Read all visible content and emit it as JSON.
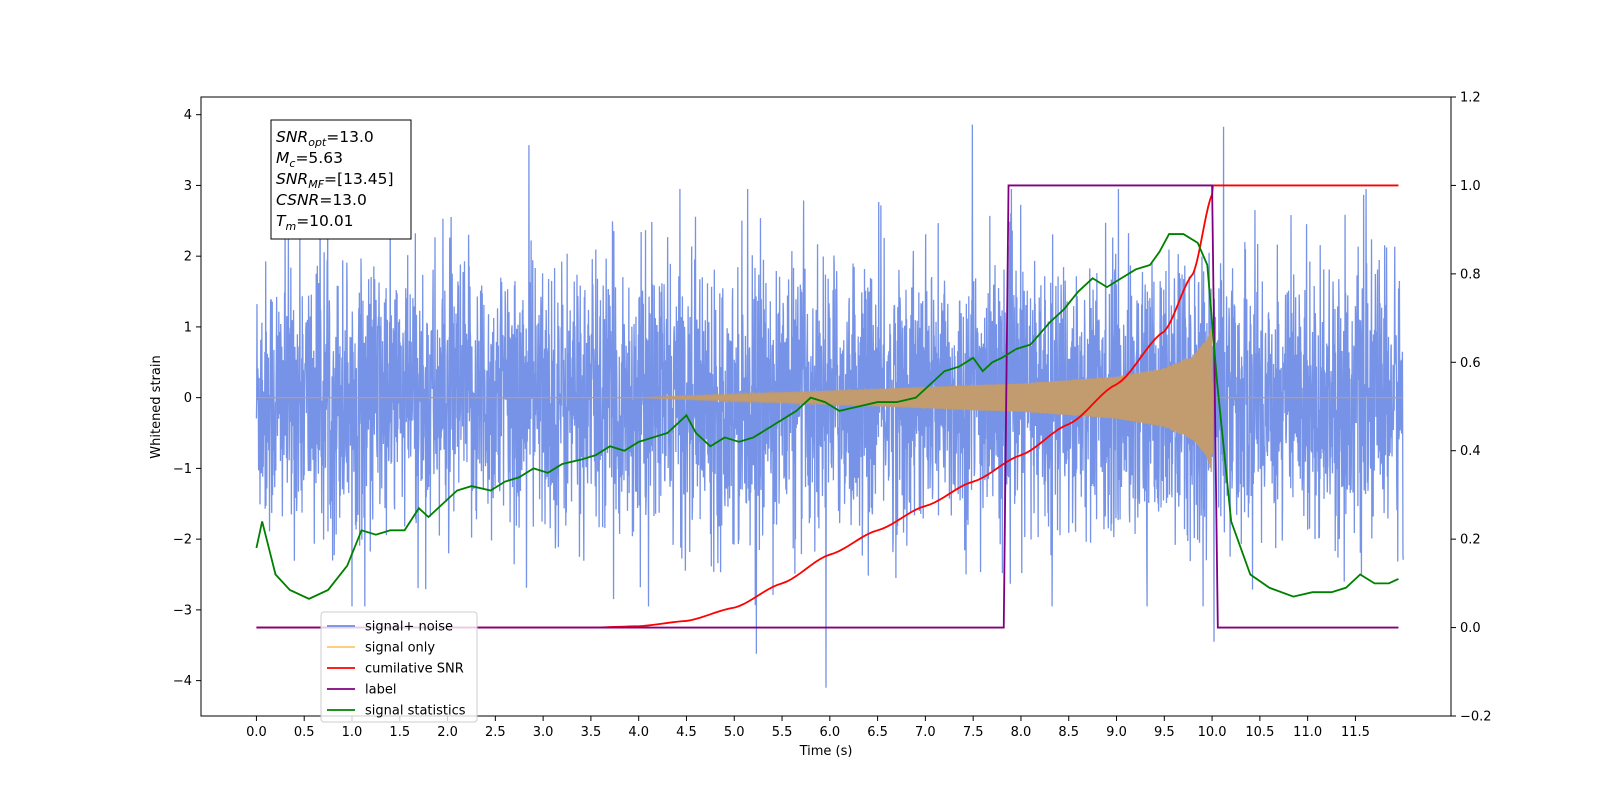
{
  "chart_data": {
    "type": "line",
    "xlabel": "Time (s)",
    "ylabel": "Whitened strain",
    "x_ticks": [
      "0.0",
      "0.5",
      "1.0",
      "1.5",
      "2.0",
      "2.5",
      "3.0",
      "3.5",
      "4.0",
      "4.5",
      "5.0",
      "5.5",
      "6.0",
      "6.5",
      "7.0",
      "7.5",
      "8.0",
      "8.5",
      "9.0",
      "9.5",
      "10.0",
      "10.5",
      "11.0",
      "11.5"
    ],
    "y_ticks": [
      "−4",
      "−3",
      "−2",
      "−1",
      "0",
      "1",
      "2",
      "3",
      "4"
    ],
    "y2_ticks": [
      "−0.2",
      "0.0",
      "0.2",
      "0.4",
      "0.6",
      "0.8",
      "1.0",
      "1.2"
    ],
    "xlim": [
      -0.58,
      12.5
    ],
    "ylim": [
      -4.5,
      4.25
    ],
    "y2lim": [
      -0.2,
      1.2
    ],
    "grid": false,
    "legend_position": "lower-left",
    "info_box": {
      "lines": [
        {
          "base": "SNR",
          "sub": "opt",
          "value": "=13.0"
        },
        {
          "base": "M",
          "sub": "c",
          "value": "=5.63"
        },
        {
          "base": "SNR",
          "sub": "MF",
          "value": "=[13.45]"
        },
        {
          "base": "CSNR",
          "sub": "",
          "value": "=13.0"
        },
        {
          "base": "T",
          "sub": "m",
          "value": "=10.01"
        }
      ]
    },
    "legend": [
      {
        "label": "signal+ noise",
        "color": "#6f8de6"
      },
      {
        "label": "signal only",
        "color": "#ffc76b"
      },
      {
        "label": "cumilative SNR",
        "color": "#ff0000"
      },
      {
        "label": "label",
        "color": "#800080"
      },
      {
        "label": "signal statistics",
        "color": "#008000"
      }
    ],
    "series": [
      {
        "name": "signal+ noise",
        "axis": "left",
        "color": "#6f8de6",
        "description": "whitened Gaussian noise plus chirp, amplitude ~[-3.5, 3.9], 0.0-12.0 s",
        "noise_sigma": 0.95,
        "x_range": [
          0.0,
          12.0
        ],
        "notable_peaks": [
          [
            2.85,
            3.57
          ],
          [
            5.23,
            -3.62
          ],
          [
            5.96,
            -4.1
          ],
          [
            7.49,
            3.86
          ],
          [
            10.02,
            -3.45
          ],
          [
            10.12,
            3.83
          ]
        ]
      },
      {
        "name": "signal only",
        "axis": "left",
        "color": "#c29b6e",
        "description": "chirp envelope growing to ~1.1 at 10.0 s then 0",
        "envelope_x": [
          0.0,
          4.0,
          5.0,
          6.0,
          7.0,
          7.5,
          8.0,
          8.5,
          9.0,
          9.5,
          9.8,
          9.95,
          10.0,
          10.01,
          12.0
        ],
        "envelope_y": [
          0.0,
          0.0,
          0.05,
          0.1,
          0.15,
          0.18,
          0.2,
          0.25,
          0.3,
          0.42,
          0.6,
          0.85,
          1.1,
          0.0,
          0.0
        ]
      },
      {
        "name": "cumilative SNR",
        "axis": "right",
        "color": "#ff0000",
        "x": [
          0.0,
          3.5,
          4.0,
          4.5,
          5.0,
          5.5,
          6.0,
          6.5,
          7.0,
          7.5,
          8.0,
          8.5,
          9.0,
          9.5,
          9.8,
          10.0,
          10.01,
          11.95
        ],
        "y": [
          0.0,
          0.0,
          0.003,
          0.015,
          0.045,
          0.1,
          0.165,
          0.22,
          0.275,
          0.33,
          0.39,
          0.46,
          0.55,
          0.67,
          0.8,
          0.98,
          1.0,
          1.0
        ]
      },
      {
        "name": "label",
        "axis": "right",
        "color": "#800080",
        "x": [
          0.0,
          7.82,
          7.87,
          10.0,
          10.06,
          11.95
        ],
        "y": [
          0.0,
          0.0,
          1.0,
          1.0,
          0.0,
          0.0
        ]
      },
      {
        "name": "signal statistics",
        "axis": "right",
        "color": "#008000",
        "x": [
          0.0,
          0.06,
          0.2,
          0.35,
          0.55,
          0.75,
          0.95,
          1.1,
          1.25,
          1.4,
          1.55,
          1.7,
          1.8,
          1.95,
          2.1,
          2.25,
          2.45,
          2.6,
          2.75,
          2.9,
          3.05,
          3.2,
          3.4,
          3.55,
          3.7,
          3.85,
          4.0,
          4.15,
          4.3,
          4.5,
          4.6,
          4.75,
          4.9,
          5.05,
          5.2,
          5.35,
          5.5,
          5.65,
          5.8,
          5.95,
          6.1,
          6.3,
          6.5,
          6.7,
          6.9,
          7.05,
          7.2,
          7.35,
          7.5,
          7.6,
          7.7,
          7.8,
          7.95,
          8.1,
          8.3,
          8.45,
          8.6,
          8.75,
          8.9,
          9.05,
          9.2,
          9.35,
          9.45,
          9.55,
          9.7,
          9.85,
          9.95,
          10.05,
          10.2,
          10.4,
          10.6,
          10.85,
          11.05,
          11.25,
          11.4,
          11.55,
          11.7,
          11.85,
          11.95
        ],
        "y": [
          0.18,
          0.24,
          0.12,
          0.085,
          0.065,
          0.085,
          0.14,
          0.22,
          0.21,
          0.22,
          0.22,
          0.27,
          0.25,
          0.28,
          0.31,
          0.32,
          0.31,
          0.33,
          0.34,
          0.36,
          0.35,
          0.37,
          0.38,
          0.39,
          0.41,
          0.4,
          0.42,
          0.43,
          0.44,
          0.48,
          0.44,
          0.41,
          0.43,
          0.42,
          0.43,
          0.45,
          0.47,
          0.49,
          0.52,
          0.51,
          0.49,
          0.5,
          0.51,
          0.51,
          0.52,
          0.55,
          0.58,
          0.59,
          0.61,
          0.58,
          0.6,
          0.61,
          0.63,
          0.64,
          0.69,
          0.72,
          0.76,
          0.79,
          0.77,
          0.79,
          0.81,
          0.82,
          0.85,
          0.89,
          0.89,
          0.87,
          0.82,
          0.56,
          0.24,
          0.12,
          0.09,
          0.07,
          0.08,
          0.08,
          0.09,
          0.12,
          0.1,
          0.1,
          0.11
        ]
      }
    ]
  }
}
